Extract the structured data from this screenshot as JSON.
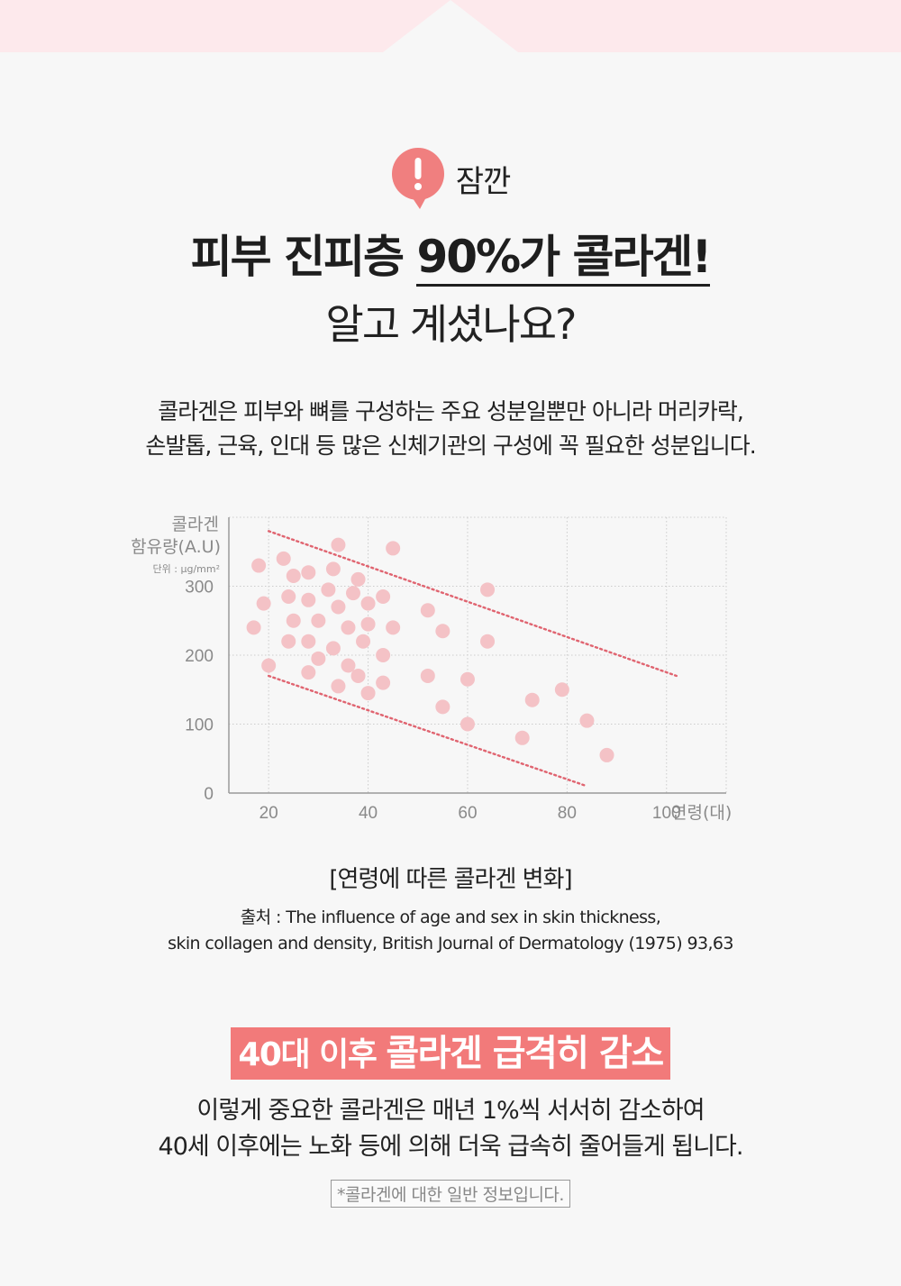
{
  "alert": {
    "label": "잠깐",
    "icon": "exclamation-bubble-icon",
    "color": "#f07f7f"
  },
  "headline": {
    "before": "피부 진피층 ",
    "highlight": "90%가 콜라겐!",
    "line2": "알고 계셨나요?"
  },
  "description": [
    "콜라겐은 피부와 뼈를 구성하는 주요 성분일뿐만 아니라  머리카락,",
    "손발톱, 근육, 인대 등 많은 신체기관의 구성에 꼭 필요한 성분입니다."
  ],
  "chart_data": {
    "type": "scatter",
    "ylabel": [
      "콜라겐",
      "함유량(A.U)"
    ],
    "yunit": "단위 : µg/mm²",
    "xlabel": "연령(대)",
    "xticks": [
      "20",
      "40",
      "60",
      "80",
      "100"
    ],
    "yticks": [
      "0",
      "100",
      "200",
      "300"
    ],
    "xlim": [
      12,
      112
    ],
    "ylim": [
      0,
      400
    ],
    "grid": true,
    "point_color": "#f4c2c6",
    "trend_color": "#e06470",
    "points": [
      [
        17,
        240
      ],
      [
        18,
        330
      ],
      [
        19,
        275
      ],
      [
        20,
        185
      ],
      [
        23,
        340
      ],
      [
        24,
        285
      ],
      [
        24,
        220
      ],
      [
        25,
        250
      ],
      [
        25,
        315
      ],
      [
        28,
        320
      ],
      [
        28,
        280
      ],
      [
        28,
        220
      ],
      [
        28,
        175
      ],
      [
        30,
        195
      ],
      [
        30,
        250
      ],
      [
        32,
        295
      ],
      [
        33,
        210
      ],
      [
        33,
        325
      ],
      [
        34,
        360
      ],
      [
        34,
        270
      ],
      [
        34,
        155
      ],
      [
        36,
        240
      ],
      [
        36,
        185
      ],
      [
        37,
        290
      ],
      [
        38,
        310
      ],
      [
        38,
        170
      ],
      [
        39,
        220
      ],
      [
        40,
        145
      ],
      [
        40,
        245
      ],
      [
        40,
        275
      ],
      [
        43,
        285
      ],
      [
        43,
        200
      ],
      [
        43,
        160
      ],
      [
        45,
        355
      ],
      [
        45,
        240
      ],
      [
        52,
        265
      ],
      [
        52,
        170
      ],
      [
        55,
        235
      ],
      [
        55,
        125
      ],
      [
        60,
        100
      ],
      [
        60,
        165
      ],
      [
        64,
        295
      ],
      [
        64,
        220
      ],
      [
        71,
        80
      ],
      [
        73,
        135
      ],
      [
        79,
        150
      ],
      [
        84,
        105
      ],
      [
        88,
        55
      ]
    ],
    "trend_lines": [
      {
        "from": [
          20,
          380
        ],
        "to": [
          102,
          170
        ]
      },
      {
        "from": [
          20,
          170
        ],
        "to": [
          84,
          10
        ]
      }
    ]
  },
  "caption": "[연령에 따른 콜라겐 변화]",
  "source": [
    "출처 : The influence of age and sex in skin thickness,",
    "skin collagen and density, British Journal of Dermatology (1975) 93,63"
  ],
  "banner": {
    "part1": "40대 이후 ",
    "part2": "콜라겐 급격히 감소",
    "color": "#f27a7a"
  },
  "summary": [
    "이렇게 중요한 콜라겐은 매년 1%씩 서서히 감소하여",
    "40세 이후에는 노화 등에 의해 더욱 급속히 줄어들게 됩니다."
  ],
  "note": "*콜라겐에 대한 일반 정보입니다."
}
